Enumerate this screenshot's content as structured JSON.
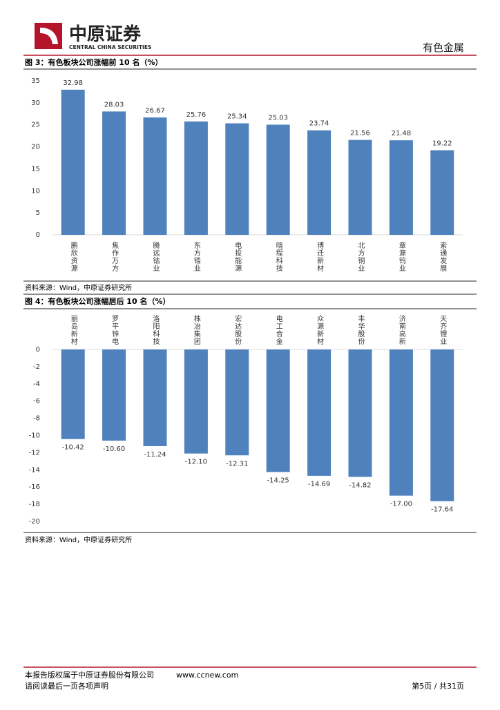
{
  "header": {
    "company": "中原证券",
    "company_en": "CENTRAL CHINA SECURITIES",
    "sector": "有色金属"
  },
  "chart_data": [
    {
      "type": "bar",
      "title": "图 3：有色板块公司涨幅前 10 名（%）",
      "categories": [
        "鹏欣资源",
        "焦作万方",
        "腾远钴业",
        "东方锆业",
        "电投能源",
        "晓程科技",
        "博迁新材",
        "北方铜业",
        "章源钨业",
        "索通发展"
      ],
      "values": [
        32.98,
        28.03,
        26.67,
        25.76,
        25.34,
        25.03,
        23.74,
        21.56,
        21.48,
        19.22
      ],
      "color": "#4f81bd",
      "ylim": [
        0,
        35
      ],
      "yticks": [
        0,
        5,
        10,
        15,
        20,
        25,
        30,
        35
      ],
      "grid": false,
      "source": "资料来源：Wind，中原证券研究所"
    },
    {
      "type": "bar",
      "title": "图 4：有色板块公司涨幅居后 10 名（%）",
      "categories": [
        "丽岛新材",
        "罗平锌电",
        "洛阳科技",
        "株冶集团",
        "宏达股份",
        "电工合金",
        "众源新材",
        "丰华股份",
        "济南高新",
        "天齐锂业"
      ],
      "values": [
        -10.42,
        -10.6,
        -11.24,
        -12.1,
        -12.31,
        -14.25,
        -14.69,
        -14.82,
        -17.0,
        -17.64
      ],
      "value_labels": [
        "-10.42",
        "-10.60",
        "-11.24",
        "-12.10",
        "-12.31",
        "-14.25",
        "-14.69",
        "-14.82",
        "-17.00",
        "-17.64"
      ],
      "color": "#4f81bd",
      "ylim": [
        -20,
        0
      ],
      "yticks": [
        -20,
        -18,
        -16,
        -14,
        -12,
        -10,
        -8,
        -6,
        -4,
        -2,
        0
      ],
      "grid": false,
      "source": "资料来源：Wind，中原证券研究所"
    }
  ],
  "footer": {
    "copyright": "本报告版权属于中原证券股份有限公司",
    "website": "www.ccnew.com",
    "notice": "请阅读最后一页各项声明",
    "page": "第5页 / 共31页"
  }
}
